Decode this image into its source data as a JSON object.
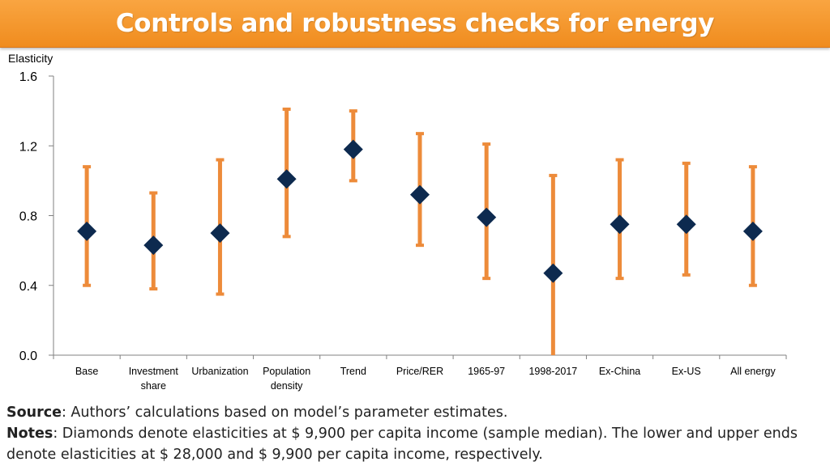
{
  "title": "Controls and robustness checks for energy",
  "chart_data": {
    "type": "error-bar",
    "ylabel": "Elasticity",
    "ylim": [
      0,
      1.6
    ],
    "yticks": [
      "0.0",
      "0.4",
      "0.8",
      "1.2",
      "1.6"
    ],
    "categories": [
      [
        "Base"
      ],
      [
        "Investment",
        "share"
      ],
      [
        "Urbanization"
      ],
      [
        "Population",
        "density"
      ],
      [
        "Trend"
      ],
      [
        "Price/RER"
      ],
      [
        "1965-97"
      ],
      [
        "1998-2017"
      ],
      [
        "Ex-China"
      ],
      [
        "Ex-US"
      ],
      [
        "All energy"
      ]
    ],
    "series": [
      {
        "name": "Elasticity at $9,900 (median)",
        "values": [
          0.71,
          0.63,
          0.7,
          1.01,
          1.18,
          0.92,
          0.79,
          0.47,
          0.75,
          0.75,
          0.71
        ]
      },
      {
        "name": "Lower end ($28,000)",
        "values": [
          0.4,
          0.38,
          0.35,
          0.68,
          1.0,
          0.63,
          0.44,
          0.0,
          0.44,
          0.46,
          0.4
        ]
      },
      {
        "name": "Upper end ($9,900)",
        "values": [
          1.08,
          0.93,
          1.12,
          1.41,
          1.4,
          1.27,
          1.21,
          1.03,
          1.12,
          1.1,
          1.08
        ]
      }
    ],
    "colors": {
      "bar": "#ed8b3a",
      "diamond": "#0d2a4f",
      "axis": "#808080"
    }
  },
  "notes": {
    "source_label": "Source",
    "source_text": ": Authors’ calculations based on model’s parameter estimates.",
    "notes_label": "Notes",
    "notes_text": ": Diamonds denote elasticities at $ 9,900 per capita income (sample median). The lower and upper ends denote elasticities at $ 28,000 and $ 9,900 per capita income, respectively."
  }
}
